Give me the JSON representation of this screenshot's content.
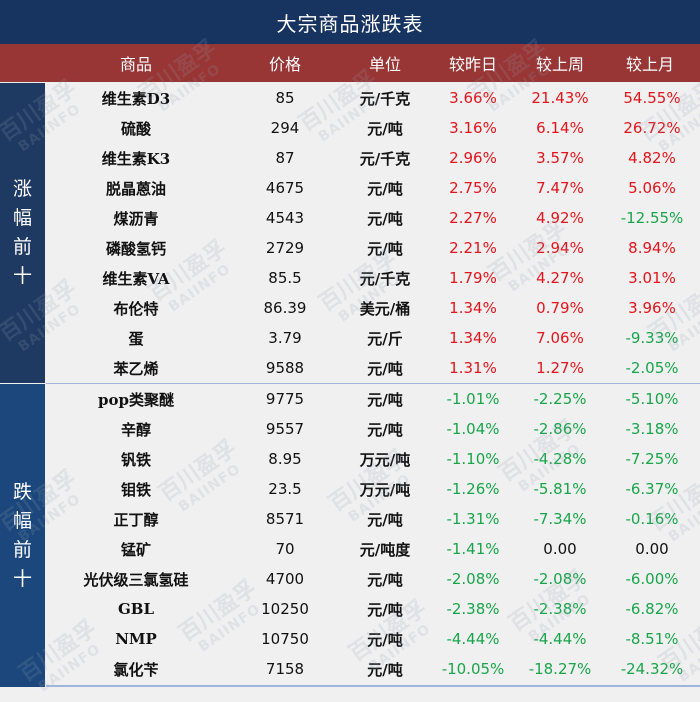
{
  "title": "大宗商品涨跌表",
  "columns": [
    "商品",
    "价格",
    "单位",
    "较昨日",
    "较上周",
    "较上月"
  ],
  "colors": {
    "title_bg": "#173461",
    "header_bg": "#983535",
    "top_section_bg": "#1e3a62",
    "bottom_section_bg": "#1c477c",
    "positive": "#e3141b",
    "negative": "#18a54a"
  },
  "watermark": {
    "cn": "百川盈孚",
    "en": "BAIINFO"
  },
  "sections": [
    {
      "label": [
        "涨",
        "幅",
        "前",
        "十"
      ],
      "rows": [
        {
          "name": "维生素D3",
          "price": "85",
          "unit": "元/千克",
          "day": "3.66%",
          "week": "21.43%",
          "month": "54.55%",
          "day_sign": "pos",
          "week_sign": "pos",
          "month_sign": "pos"
        },
        {
          "name": "硫酸",
          "price": "294",
          "unit": "元/吨",
          "day": "3.16%",
          "week": "6.14%",
          "month": "26.72%",
          "day_sign": "pos",
          "week_sign": "pos",
          "month_sign": "pos"
        },
        {
          "name": "维生素K3",
          "price": "87",
          "unit": "元/千克",
          "day": "2.96%",
          "week": "3.57%",
          "month": "4.82%",
          "day_sign": "pos",
          "week_sign": "pos",
          "month_sign": "pos"
        },
        {
          "name": "脱晶蒽油",
          "price": "4675",
          "unit": "元/吨",
          "day": "2.75%",
          "week": "7.47%",
          "month": "5.06%",
          "day_sign": "pos",
          "week_sign": "pos",
          "month_sign": "pos"
        },
        {
          "name": "煤沥青",
          "price": "4543",
          "unit": "元/吨",
          "day": "2.27%",
          "week": "4.92%",
          "month": "-12.55%",
          "day_sign": "pos",
          "week_sign": "pos",
          "month_sign": "neg"
        },
        {
          "name": "磷酸氢钙",
          "price": "2729",
          "unit": "元/吨",
          "day": "2.21%",
          "week": "2.94%",
          "month": "8.94%",
          "day_sign": "pos",
          "week_sign": "pos",
          "month_sign": "pos"
        },
        {
          "name": "维生素VA",
          "price": "85.5",
          "unit": "元/千克",
          "day": "1.79%",
          "week": "4.27%",
          "month": "3.01%",
          "day_sign": "pos",
          "week_sign": "pos",
          "month_sign": "pos"
        },
        {
          "name": "布伦特",
          "price": "86.39",
          "unit": "美元/桶",
          "day": "1.34%",
          "week": "0.79%",
          "month": "3.96%",
          "day_sign": "pos",
          "week_sign": "pos",
          "month_sign": "pos"
        },
        {
          "name": "蛋",
          "price": "3.79",
          "unit": "元/斤",
          "day": "1.34%",
          "week": "7.06%",
          "month": "-9.33%",
          "day_sign": "pos",
          "week_sign": "pos",
          "month_sign": "neg"
        },
        {
          "name": "苯乙烯",
          "price": "9588",
          "unit": "元/吨",
          "day": "1.31%",
          "week": "1.27%",
          "month": "-2.05%",
          "day_sign": "pos",
          "week_sign": "pos",
          "month_sign": "neg"
        }
      ]
    },
    {
      "label": [
        "跌",
        "幅",
        "前",
        "十"
      ],
      "rows": [
        {
          "name": "pop类聚醚",
          "price": "9775",
          "unit": "元/吨",
          "day": "-1.01%",
          "week": "-2.25%",
          "month": "-5.10%",
          "day_sign": "neg",
          "week_sign": "neg",
          "month_sign": "neg"
        },
        {
          "name": "辛醇",
          "price": "9557",
          "unit": "元/吨",
          "day": "-1.04%",
          "week": "-2.86%",
          "month": "-3.18%",
          "day_sign": "neg",
          "week_sign": "neg",
          "month_sign": "neg"
        },
        {
          "name": "钒铁",
          "price": "8.95",
          "unit": "万元/吨",
          "day": "-1.10%",
          "week": "-4.28%",
          "month": "-7.25%",
          "day_sign": "neg",
          "week_sign": "neg",
          "month_sign": "neg"
        },
        {
          "name": "钼铁",
          "price": "23.5",
          "unit": "万元/吨",
          "day": "-1.26%",
          "week": "-5.81%",
          "month": "-6.37%",
          "day_sign": "neg",
          "week_sign": "neg",
          "month_sign": "neg"
        },
        {
          "name": "正丁醇",
          "price": "8571",
          "unit": "元/吨",
          "day": "-1.31%",
          "week": "-7.34%",
          "month": "-0.16%",
          "day_sign": "neg",
          "week_sign": "neg",
          "month_sign": "neg"
        },
        {
          "name": "锰矿",
          "price": "70",
          "unit": "元/吨度",
          "day": "-1.41%",
          "week": "0.00",
          "month": "0.00",
          "day_sign": "neg",
          "week_sign": "zero",
          "month_sign": "zero"
        },
        {
          "name": "光伏级三氯氢硅",
          "price": "4700",
          "unit": "元/吨",
          "day": "-2.08%",
          "week": "-2.08%",
          "month": "-6.00%",
          "day_sign": "neg",
          "week_sign": "neg",
          "month_sign": "neg"
        },
        {
          "name": "GBL",
          "price": "10250",
          "unit": "元/吨",
          "day": "-2.38%",
          "week": "-2.38%",
          "month": "-6.82%",
          "day_sign": "neg",
          "week_sign": "neg",
          "month_sign": "neg"
        },
        {
          "name": "NMP",
          "price": "10750",
          "unit": "元/吨",
          "day": "-4.44%",
          "week": "-4.44%",
          "month": "-8.51%",
          "day_sign": "neg",
          "week_sign": "neg",
          "month_sign": "neg"
        },
        {
          "name": "氯化苄",
          "price": "7158",
          "unit": "元/吨",
          "day": "-10.05%",
          "week": "-18.27%",
          "month": "-24.32%",
          "day_sign": "neg",
          "week_sign": "neg",
          "month_sign": "neg"
        }
      ]
    }
  ]
}
